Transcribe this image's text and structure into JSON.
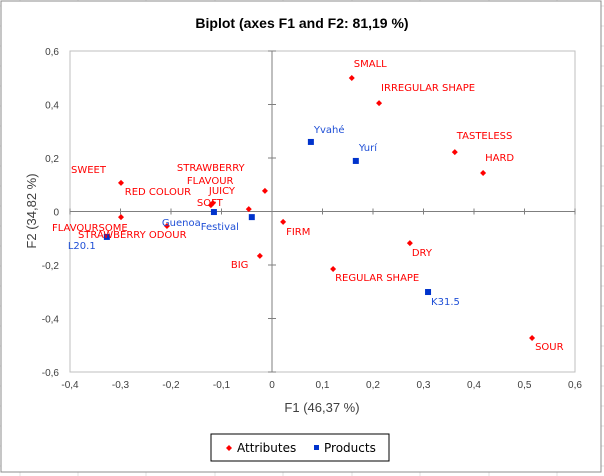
{
  "chart_data": {
    "type": "scatter",
    "title": "Biplot (axes F1 and F2: 81,19 %)",
    "xlabel": "F1 (46,37 %)",
    "ylabel": "F2 (34,82 %)",
    "xlim": [
      -0.4,
      0.6
    ],
    "ylim": [
      -0.6,
      0.6
    ],
    "x_ticks": [
      "-0,4",
      "-0,3",
      "-0,2",
      "-0,1",
      "0",
      "0,1",
      "0,2",
      "0,3",
      "0,4",
      "0,5",
      "0,6"
    ],
    "x_tick_values": [
      -0.4,
      -0.3,
      -0.2,
      -0.1,
      0,
      0.1,
      0.2,
      0.3,
      0.4,
      0.5,
      0.6
    ],
    "y_ticks": [
      "0,6",
      "0,4",
      "0,2",
      "0",
      "-0,2",
      "-0,4",
      "-0,6"
    ],
    "y_tick_values": [
      0.6,
      0.4,
      0.2,
      0,
      -0.2,
      -0.4,
      -0.6
    ],
    "grid": false,
    "legend": "bottom",
    "series": [
      {
        "name": "Attributes",
        "color": "#ff0000",
        "marker": "diamond",
        "points": [
          {
            "label": "SMALL",
            "x": 0.158,
            "y": 0.499
          },
          {
            "label": "IRREGULAR SHAPE",
            "x": 0.212,
            "y": 0.405
          },
          {
            "label": "TASTELESS",
            "x": 0.362,
            "y": 0.222
          },
          {
            "label": "HARD",
            "x": 0.418,
            "y": 0.144
          },
          {
            "label": "SWEET",
            "x": -0.299,
            "y": 0.107
          },
          {
            "label": "STRAWBERRY FLAVOUR",
            "x": -0.014,
            "y": 0.077
          },
          {
            "label": "JUICY",
            "x": -0.117,
            "y": 0.032
          },
          {
            "label": "SOFT",
            "x": -0.121,
            "y": 0.024
          },
          {
            "label": "RED COLOUR",
            "x": -0.046,
            "y": 0.009
          },
          {
            "label": "FLAVOURSOME",
            "x": -0.299,
            "y": -0.021
          },
          {
            "label": "STRAWBERRY ODOUR",
            "x": -0.208,
            "y": -0.054
          },
          {
            "label": "FIRM",
            "x": 0.022,
            "y": -0.039
          },
          {
            "label": "DRY",
            "x": 0.273,
            "y": -0.118
          },
          {
            "label": "BIG",
            "x": -0.024,
            "y": -0.166
          },
          {
            "label": "REGULAR SHAPE",
            "x": 0.121,
            "y": -0.215
          },
          {
            "label": "SOUR",
            "x": 0.515,
            "y": -0.473
          }
        ]
      },
      {
        "name": "Products",
        "color": "#0033cc",
        "marker": "square",
        "points": [
          {
            "label": "Yvahé",
            "x": 0.077,
            "y": 0.26
          },
          {
            "label": "Yurí",
            "x": 0.166,
            "y": 0.189
          },
          {
            "label": "Guenoa",
            "x": -0.115,
            "y": -0.002
          },
          {
            "label": "Festival",
            "x": -0.04,
            "y": -0.021
          },
          {
            "label": "L20.1",
            "x": -0.327,
            "y": -0.095
          },
          {
            "label": "K31.5",
            "x": 0.309,
            "y": -0.301
          }
        ]
      }
    ]
  },
  "legend": {
    "items": [
      {
        "label": "Attributes",
        "color": "#ff0000"
      },
      {
        "label": "Products",
        "color": "#0033cc"
      }
    ]
  }
}
